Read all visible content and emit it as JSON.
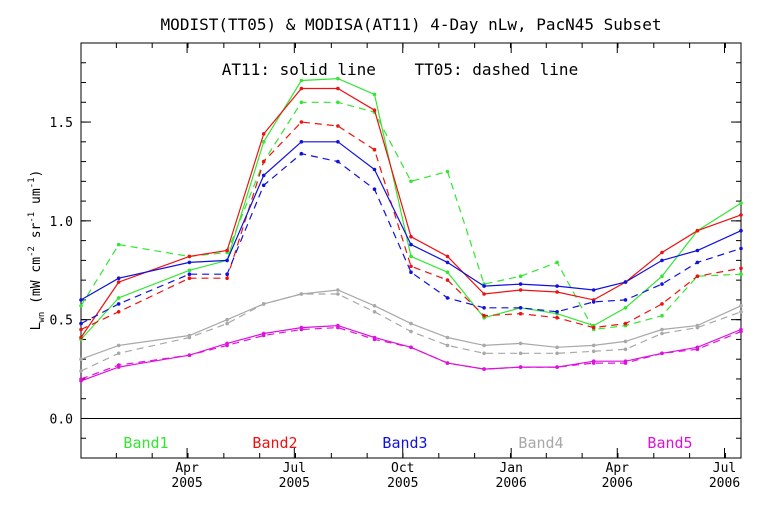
{
  "chart_data": {
    "type": "line",
    "title": "MODIST(TT05) & MODISA(AT11) 4-Day nLw, PacN45 Subset",
    "annotation": "AT11: solid line    TT05: dashed line",
    "ylabel": "Lwn (mW cm-2 sr-1 um-1)",
    "ylabel_parts": {
      "main": "L",
      "sub": "wn",
      "units_a": " (mW cm",
      "exp1": "-2",
      "units_b": " sr",
      "exp2": "-1",
      "units_c": " um",
      "exp3": "-1",
      "units_d": ")"
    },
    "xlabel": "",
    "x_unit": "day offset from 2005-01-01",
    "xlim": [
      0,
      560
    ],
    "ylim": [
      -0.2,
      1.9
    ],
    "yticks": [
      {
        "value": 0.0,
        "label": "0.0"
      },
      {
        "value": 0.5,
        "label": "0.5"
      },
      {
        "value": 1.0,
        "label": "1.0"
      },
      {
        "value": 1.5,
        "label": "1.5"
      }
    ],
    "xticks": [
      {
        "value": 90,
        "month": "Apr",
        "year": "2005"
      },
      {
        "value": 181,
        "month": "Jul",
        "year": "2005"
      },
      {
        "value": 273,
        "month": "Oct",
        "year": "2005"
      },
      {
        "value": 365,
        "month": "Jan",
        "year": "2006"
      },
      {
        "value": 455,
        "month": "Apr",
        "year": "2006"
      },
      {
        "value": 546,
        "month": "Jul",
        "year": "2006"
      }
    ],
    "grid": false,
    "legend_position": "bottom",
    "series": [
      {
        "name": "Band1",
        "color": "#33e633",
        "style": "solid",
        "x": [
          0,
          32,
          92,
          124,
          155,
          187,
          218,
          249,
          280,
          311,
          342,
          373,
          404,
          435,
          462,
          493,
          523,
          560
        ],
        "y": [
          0.4,
          0.61,
          0.75,
          0.8,
          1.4,
          1.71,
          1.72,
          1.64,
          0.82,
          0.74,
          0.51,
          0.56,
          0.53,
          0.47,
          0.56,
          0.72,
          0.95,
          1.09
        ]
      },
      {
        "name": "Band1",
        "color": "#33e633",
        "style": "dashed",
        "x": [
          0,
          32,
          92,
          124,
          155,
          187,
          218,
          249,
          280,
          311,
          342,
          373,
          404,
          435,
          462,
          493,
          523,
          560
        ],
        "y": [
          0.57,
          0.88,
          0.82,
          0.84,
          1.3,
          1.6,
          1.6,
          1.55,
          1.2,
          1.25,
          0.68,
          0.72,
          0.79,
          0.45,
          0.47,
          0.52,
          0.72,
          0.73
        ]
      },
      {
        "name": "Band2",
        "color": "#ee1111",
        "style": "solid",
        "x": [
          0,
          32,
          92,
          124,
          155,
          187,
          218,
          249,
          280,
          311,
          342,
          373,
          404,
          435,
          462,
          493,
          523,
          560
        ],
        "y": [
          0.41,
          0.69,
          0.82,
          0.85,
          1.44,
          1.67,
          1.67,
          1.56,
          0.92,
          0.82,
          0.63,
          0.65,
          0.64,
          0.6,
          0.69,
          0.84,
          0.95,
          1.03
        ]
      },
      {
        "name": "Band2",
        "color": "#ee1111",
        "style": "dashed",
        "x": [
          0,
          32,
          92,
          124,
          155,
          187,
          218,
          249,
          280,
          311,
          342,
          373,
          404,
          435,
          462,
          493,
          523,
          560
        ],
        "y": [
          0.45,
          0.54,
          0.71,
          0.71,
          1.3,
          1.5,
          1.48,
          1.36,
          0.77,
          0.7,
          0.52,
          0.53,
          0.51,
          0.46,
          0.48,
          0.58,
          0.72,
          0.76
        ]
      },
      {
        "name": "Band3",
        "color": "#1111dd",
        "style": "solid",
        "x": [
          0,
          32,
          92,
          124,
          155,
          187,
          218,
          249,
          280,
          311,
          342,
          373,
          404,
          435,
          462,
          493,
          523,
          560
        ],
        "y": [
          0.6,
          0.71,
          0.79,
          0.8,
          1.23,
          1.4,
          1.4,
          1.26,
          0.88,
          0.79,
          0.67,
          0.68,
          0.67,
          0.65,
          0.69,
          0.8,
          0.85,
          0.95
        ]
      },
      {
        "name": "Band3",
        "color": "#1111dd",
        "style": "dashed",
        "x": [
          0,
          32,
          92,
          124,
          155,
          187,
          218,
          249,
          280,
          311,
          342,
          373,
          404,
          435,
          462,
          493,
          523,
          560
        ],
        "y": [
          0.48,
          0.58,
          0.73,
          0.73,
          1.18,
          1.34,
          1.3,
          1.16,
          0.74,
          0.61,
          0.56,
          0.56,
          0.54,
          0.59,
          0.6,
          0.68,
          0.79,
          0.86
        ]
      },
      {
        "name": "Band4",
        "color": "#a8a8a8",
        "style": "solid",
        "x": [
          0,
          32,
          92,
          124,
          155,
          187,
          218,
          249,
          280,
          311,
          342,
          373,
          404,
          435,
          462,
          493,
          523,
          560
        ],
        "y": [
          0.3,
          0.37,
          0.42,
          0.5,
          0.58,
          0.63,
          0.65,
          0.57,
          0.48,
          0.41,
          0.37,
          0.38,
          0.36,
          0.37,
          0.39,
          0.45,
          0.47,
          0.57
        ]
      },
      {
        "name": "Band4",
        "color": "#a8a8a8",
        "style": "dashed",
        "x": [
          0,
          32,
          92,
          124,
          155,
          187,
          218,
          249,
          280,
          311,
          342,
          373,
          404,
          435,
          462,
          493,
          523,
          560
        ],
        "y": [
          0.24,
          0.33,
          0.41,
          0.48,
          0.58,
          0.63,
          0.63,
          0.54,
          0.44,
          0.37,
          0.33,
          0.33,
          0.33,
          0.34,
          0.35,
          0.43,
          0.46,
          0.54
        ]
      },
      {
        "name": "Band5",
        "color": "#dd11dd",
        "style": "solid",
        "x": [
          0,
          32,
          92,
          124,
          155,
          187,
          218,
          249,
          280,
          311,
          342,
          373,
          404,
          435,
          462,
          493,
          523,
          560
        ],
        "y": [
          0.19,
          0.26,
          0.32,
          0.38,
          0.43,
          0.46,
          0.47,
          0.41,
          0.36,
          0.28,
          0.25,
          0.26,
          0.26,
          0.29,
          0.29,
          0.33,
          0.36,
          0.45
        ]
      },
      {
        "name": "Band5",
        "color": "#dd11dd",
        "style": "dashed",
        "x": [
          0,
          32,
          92,
          124,
          155,
          187,
          218,
          249,
          280,
          311,
          342,
          373,
          404,
          435,
          462,
          493,
          523,
          560
        ],
        "y": [
          0.2,
          0.27,
          0.32,
          0.37,
          0.42,
          0.45,
          0.46,
          0.4,
          0.36,
          0.28,
          0.25,
          0.26,
          0.26,
          0.28,
          0.28,
          0.33,
          0.35,
          0.44
        ]
      }
    ],
    "legend": [
      {
        "label": "Band1",
        "color": "#33e633"
      },
      {
        "label": "Band2",
        "color": "#ee1111"
      },
      {
        "label": "Band3",
        "color": "#1111dd"
      },
      {
        "label": "Band4",
        "color": "#a8a8a8"
      },
      {
        "label": "Band5",
        "color": "#dd11dd"
      }
    ]
  }
}
